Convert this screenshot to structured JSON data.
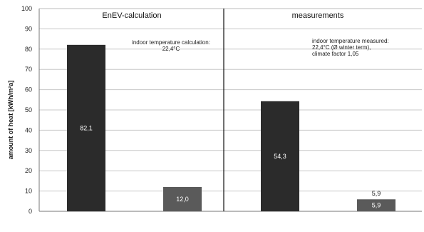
{
  "chart_data": {
    "type": "bar",
    "title": "",
    "xlabel": "",
    "ylabel": "amount of heat [kWh/m²a]",
    "ylim": [
      0,
      100
    ],
    "yticks": [
      "0",
      "10",
      "20",
      "30",
      "40",
      "50",
      "60",
      "70",
      "80",
      "90",
      "100"
    ],
    "grid": true,
    "panels": [
      {
        "title": "EnEV-calculation",
        "note": [
          "indoor temperature calculation:",
          "22,4°C"
        ],
        "bars": [
          {
            "value": 82.1,
            "label": "82,1",
            "color": "#2b2b2b"
          },
          {
            "value": 12.0,
            "label": "12,0",
            "color": "#5a5a5a"
          }
        ]
      },
      {
        "title": "measurements",
        "note": [
          "indoor temperature measured:",
          "22,4°C (Ø winter term),",
          "climate factor 1,05"
        ],
        "bars": [
          {
            "value": 54.3,
            "label": "54,3",
            "color": "#2b2b2b"
          },
          {
            "value": 5.9,
            "label": "5,9",
            "above_label": "5,9",
            "color": "#5a5a5a"
          }
        ]
      }
    ]
  }
}
